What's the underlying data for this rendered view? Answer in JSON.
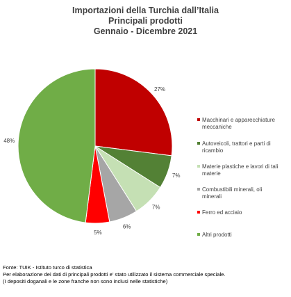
{
  "chart_data": {
    "type": "pie",
    "title": "Importazioni della Turchia dall’Italia",
    "subtitle_lines": [
      "Principali prodotti",
      "Gennaio - Dicembre 2021"
    ],
    "slices": [
      {
        "label": "Macchinari e apparecchiature meccaniche",
        "value": 27,
        "display": "27%",
        "color": "#C00000"
      },
      {
        "label": "Autoveicoli, trattori e parti di ricambio",
        "value": 7,
        "display": "7%",
        "color": "#538135"
      },
      {
        "label": "Materie plastiche e lavori di tali materie",
        "value": 7,
        "display": "7%",
        "color": "#C5E0B4"
      },
      {
        "label": "Combustibili minerali, oli minerali",
        "value": 6,
        "display": "6%",
        "color": "#A6A6A6"
      },
      {
        "label": "Ferro ed acciaio",
        "value": 5,
        "display": "5%",
        "color": "#FF0000"
      },
      {
        "label": "Altri prodotti",
        "value": 48,
        "display": "48%",
        "color": "#70AD47"
      }
    ],
    "legend_position": "right"
  },
  "legend_lines": [
    [
      "Macchinari e apparecchiature",
      "meccaniche"
    ],
    [
      "Autoveicoli, trattori e parti di",
      "ricambio"
    ],
    [
      "Materie plastiche e lavori di tali",
      "materie"
    ],
    [
      "Combustibili minerali, oli",
      "minerali"
    ],
    [
      "Ferro ed acciaio"
    ],
    [
      "Altri prodotti"
    ]
  ],
  "source": {
    "line1": "Fonte: TUIK - Istituto turco di statistica",
    "line2": "Per elaborazione dei dati di principali prodotti e’ stato utilizzato il sistema commerciale speciale.",
    "line3": "(I depositi doganali e le zone franche non sono inclusi nelle statistiche)"
  }
}
